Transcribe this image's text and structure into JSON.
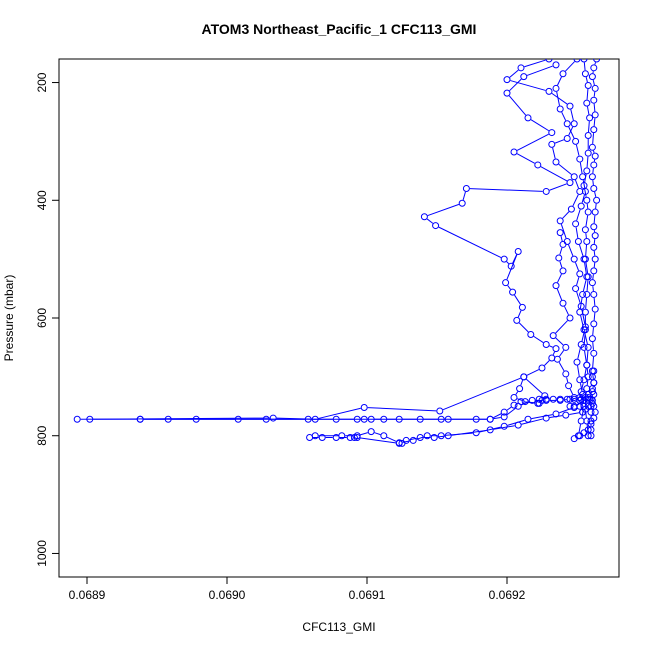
{
  "chart_data": {
    "type": "line",
    "title": "ATOM3 Northeast_Pacific_1 CFC113_GMI",
    "xlabel": "CFC113_GMI",
    "ylabel": "Pressure (mbar)",
    "xlim": [
      0.06888,
      0.06928
    ],
    "ylim": [
      1040,
      160
    ],
    "y_reversed": true,
    "x_ticks": [
      "0.0689",
      "0.0690",
      "0.0691",
      "0.0692"
    ],
    "x_tick_values": [
      0.0689,
      0.069,
      0.0691,
      0.0692
    ],
    "y_ticks": [
      "200",
      "400",
      "600",
      "800",
      "1000"
    ],
    "y_tick_values": [
      200,
      400,
      600,
      800,
      1000
    ],
    "grid": false,
    "series_color": "#0000ff",
    "marker": "open-circle",
    "series": [
      {
        "points": [
          [
            0.069264,
            160
          ],
          [
            0.069262,
            175
          ],
          [
            0.069261,
            190
          ],
          [
            0.069263,
            210
          ],
          [
            0.069262,
            230
          ],
          [
            0.069263,
            255
          ],
          [
            0.069262,
            280
          ],
          [
            0.069261,
            310
          ],
          [
            0.069263,
            325
          ],
          [
            0.069262,
            340
          ],
          [
            0.069261,
            360
          ],
          [
            0.069262,
            380
          ],
          [
            0.069264,
            400
          ],
          [
            0.069263,
            420
          ],
          [
            0.069262,
            445
          ],
          [
            0.069263,
            460
          ],
          [
            0.069262,
            480
          ],
          [
            0.069263,
            500
          ],
          [
            0.069262,
            520
          ],
          [
            0.069261,
            540
          ],
          [
            0.069262,
            560
          ],
          [
            0.069263,
            585
          ],
          [
            0.069262,
            610
          ],
          [
            0.069261,
            635
          ],
          [
            0.069262,
            660
          ],
          [
            0.069261,
            690
          ],
          [
            0.069262,
            710
          ],
          [
            0.069261,
            725
          ],
          [
            0.069261,
            745
          ],
          [
            0.06926,
            760
          ],
          [
            0.06926,
            775
          ],
          [
            0.06926,
            790
          ],
          [
            0.06926,
            800
          ]
        ]
      },
      {
        "points": [
          [
            0.069255,
            160
          ],
          [
            0.069256,
            185
          ],
          [
            0.069258,
            205
          ],
          [
            0.069257,
            235
          ],
          [
            0.069259,
            260
          ],
          [
            0.069258,
            290
          ],
          [
            0.069258,
            320
          ],
          [
            0.069257,
            350
          ],
          [
            0.069255,
            375
          ],
          [
            0.069257,
            400
          ],
          [
            0.069258,
            420
          ],
          [
            0.069256,
            450
          ],
          [
            0.069257,
            470
          ],
          [
            0.069256,
            500
          ],
          [
            0.069258,
            530
          ],
          [
            0.069257,
            560
          ],
          [
            0.069256,
            590
          ],
          [
            0.069256,
            620
          ],
          [
            0.069255,
            650
          ],
          [
            0.069257,
            680
          ],
          [
            0.069258,
            700
          ],
          [
            0.069257,
            720
          ],
          [
            0.069256,
            735
          ],
          [
            0.069256,
            755
          ],
          [
            0.069257,
            775
          ],
          [
            0.069258,
            800
          ]
        ]
      },
      {
        "points": [
          [
            0.06925,
            160
          ],
          [
            0.06924,
            185
          ],
          [
            0.069235,
            210
          ],
          [
            0.069238,
            245
          ],
          [
            0.069243,
            270
          ],
          [
            0.069249,
            300
          ],
          [
            0.069252,
            330
          ],
          [
            0.069254,
            360
          ],
          [
            0.069256,
            385
          ],
          [
            0.069253,
            410
          ],
          [
            0.069249,
            440
          ],
          [
            0.069251,
            470
          ],
          [
            0.069255,
            500
          ],
          [
            0.069257,
            530
          ],
          [
            0.069254,
            560
          ],
          [
            0.069252,
            590
          ],
          [
            0.069255,
            620
          ],
          [
            0.069258,
            650
          ],
          [
            0.069257,
            680
          ],
          [
            0.069255,
            705
          ],
          [
            0.069253,
            725
          ],
          [
            0.069252,
            740
          ],
          [
            0.069254,
            760
          ]
        ]
      },
      {
        "points": [
          [
            0.06923,
            160
          ],
          [
            0.06921,
            175
          ],
          [
            0.0692,
            195
          ],
          [
            0.06923,
            215
          ],
          [
            0.069245,
            240
          ],
          [
            0.069248,
            270
          ],
          [
            0.069243,
            295
          ],
          [
            0.069232,
            305
          ],
          [
            0.069235,
            335
          ],
          [
            0.069248,
            360
          ],
          [
            0.069252,
            385
          ],
          [
            0.069246,
            415
          ],
          [
            0.069238,
            435
          ],
          [
            0.069243,
            470
          ],
          [
            0.069248,
            500
          ],
          [
            0.069252,
            525
          ],
          [
            0.069249,
            550
          ],
          [
            0.069253,
            580
          ],
          [
            0.069256,
            615
          ],
          [
            0.069253,
            645
          ],
          [
            0.06925,
            675
          ],
          [
            0.069252,
            705
          ],
          [
            0.069254,
            730
          ],
          [
            0.069255,
            750
          ],
          [
            0.069253,
            775
          ],
          [
            0.069251,
            800
          ]
        ]
      },
      {
        "points": [
          [
            0.069235,
            170
          ],
          [
            0.069212,
            190
          ],
          [
            0.0692,
            218
          ],
          [
            0.069215,
            260
          ],
          [
            0.069232,
            285
          ],
          [
            0.069205,
            318
          ],
          [
            0.069222,
            340
          ],
          [
            0.069245,
            370
          ],
          [
            0.069228,
            385
          ],
          [
            0.069171,
            380
          ],
          [
            0.069168,
            405
          ],
          [
            0.069141,
            428
          ],
          [
            0.069149,
            443
          ],
          [
            0.069198,
            500
          ],
          [
            0.069203,
            512
          ],
          [
            0.069208,
            487
          ],
          [
            0.069199,
            540
          ],
          [
            0.069204,
            556
          ],
          [
            0.069211,
            582
          ],
          [
            0.069207,
            604
          ],
          [
            0.069217,
            628
          ],
          [
            0.069228,
            645
          ],
          [
            0.069235,
            652
          ],
          [
            0.069232,
            668
          ],
          [
            0.069225,
            685
          ],
          [
            0.069212,
            700
          ],
          [
            0.069209,
            720
          ],
          [
            0.069205,
            735
          ],
          [
            0.069213,
            742
          ],
          [
            0.069222,
            745
          ]
        ]
      },
      {
        "points": [
          [
            0.069238,
            455
          ],
          [
            0.06924,
            475
          ],
          [
            0.069237,
            498
          ],
          [
            0.06924,
            520
          ],
          [
            0.069235,
            545
          ],
          [
            0.06924,
            575
          ],
          [
            0.069245,
            600
          ],
          [
            0.069233,
            630
          ],
          [
            0.069242,
            650
          ],
          [
            0.069236,
            670
          ],
          [
            0.069242,
            695
          ],
          [
            0.069244,
            715
          ],
          [
            0.069248,
            735
          ]
        ]
      },
      {
        "points": [
          [
            0.068893,
            772
          ],
          [
            0.069033,
            770
          ],
          [
            0.069063,
            772
          ],
          [
            0.069098,
            752
          ],
          [
            0.069152,
            758
          ],
          [
            0.069212,
            700
          ],
          [
            0.069227,
            732
          ],
          [
            0.069225,
            740
          ],
          [
            0.069223,
            745
          ],
          [
            0.06921,
            742
          ],
          [
            0.069205,
            748
          ],
          [
            0.069198,
            760
          ],
          [
            0.069188,
            772
          ],
          [
            0.069153,
            772
          ],
          [
            0.069098,
            772
          ],
          [
            0.068938,
            772
          ],
          [
            0.068902,
            772
          ]
        ]
      },
      {
        "points": [
          [
            0.068938,
            772
          ],
          [
            0.068958,
            772
          ],
          [
            0.068978,
            772
          ],
          [
            0.069008,
            772
          ],
          [
            0.069028,
            772
          ],
          [
            0.069058,
            772
          ],
          [
            0.069078,
            772
          ],
          [
            0.069093,
            772
          ],
          [
            0.069103,
            772
          ],
          [
            0.069112,
            772
          ],
          [
            0.069123,
            772
          ],
          [
            0.069138,
            772
          ],
          [
            0.069158,
            772
          ],
          [
            0.069178,
            772
          ],
          [
            0.069188,
            772
          ],
          [
            0.069198,
            768
          ],
          [
            0.069208,
            750
          ],
          [
            0.069218,
            740
          ],
          [
            0.069228,
            740
          ],
          [
            0.069238,
            740
          ],
          [
            0.069245,
            738
          ],
          [
            0.069252,
            735
          ],
          [
            0.069258,
            735
          ]
        ]
      },
      {
        "points": [
          [
            0.069063,
            800
          ],
          [
            0.069082,
            800
          ],
          [
            0.069093,
            800
          ],
          [
            0.069103,
            793
          ],
          [
            0.069112,
            800
          ],
          [
            0.069123,
            812
          ],
          [
            0.069133,
            808
          ],
          [
            0.069143,
            800
          ],
          [
            0.069153,
            800
          ],
          [
            0.069178,
            795
          ],
          [
            0.069198,
            784
          ],
          [
            0.069215,
            772
          ],
          [
            0.069235,
            763
          ],
          [
            0.069248,
            752
          ],
          [
            0.069255,
            740
          ],
          [
            0.069258,
            730
          ]
        ]
      },
      {
        "points": [
          [
            0.069059,
            803
          ],
          [
            0.069068,
            803
          ],
          [
            0.069078,
            803
          ],
          [
            0.069088,
            803
          ],
          [
            0.069091,
            803
          ],
          [
            0.069093,
            803
          ],
          [
            0.069123,
            813
          ],
          [
            0.069125,
            813
          ],
          [
            0.069128,
            808
          ],
          [
            0.069138,
            803
          ],
          [
            0.069148,
            803
          ],
          [
            0.069158,
            800
          ],
          [
            0.069188,
            790
          ],
          [
            0.069208,
            782
          ],
          [
            0.069228,
            770
          ],
          [
            0.069242,
            765
          ],
          [
            0.069254,
            760
          ]
        ]
      },
      {
        "points": [
          [
            0.069248,
            805
          ],
          [
            0.069252,
            800
          ],
          [
            0.069255,
            795
          ],
          [
            0.069258,
            790
          ],
          [
            0.06926,
            780
          ],
          [
            0.069262,
            770
          ],
          [
            0.069263,
            760
          ],
          [
            0.069262,
            750
          ],
          [
            0.069261,
            740
          ],
          [
            0.069262,
            730
          ],
          [
            0.069261,
            720
          ],
          [
            0.069262,
            710
          ],
          [
            0.069261,
            700
          ],
          [
            0.069262,
            690
          ]
        ]
      },
      {
        "points": [
          [
            0.069223,
            738
          ],
          [
            0.069228,
            738
          ],
          [
            0.069233,
            738
          ],
          [
            0.069238,
            738
          ],
          [
            0.069243,
            738
          ],
          [
            0.069248,
            738
          ],
          [
            0.069253,
            738
          ],
          [
            0.069258,
            738
          ],
          [
            0.06926,
            738
          ]
        ]
      },
      {
        "points": [
          [
            0.069245,
            750
          ],
          [
            0.069248,
            750
          ],
          [
            0.069252,
            750
          ],
          [
            0.069255,
            750
          ],
          [
            0.069258,
            750
          ],
          [
            0.06926,
            750
          ]
        ]
      }
    ]
  }
}
